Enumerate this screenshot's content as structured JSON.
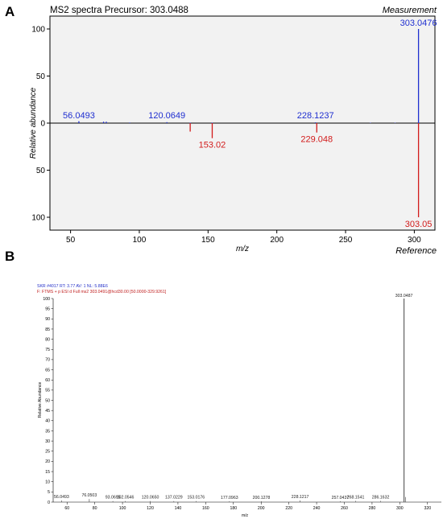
{
  "panel_a": {
    "letter": "A",
    "title": "MS2 spectra Precursor: 303.0488",
    "top_label": "Measurement",
    "bottom_label": "Reference",
    "colors": {
      "measurement": "#1f2fd0",
      "reference": "#d21b1b",
      "plot_bg": "#f2f2f2"
    }
  },
  "panel_b": {
    "letter": "B",
    "header_line1": "SKR #4017  RT: 3.77   AV: 1   NL: 5.88E6",
    "header_line2": "F:  FTMS + p ESI d Full ms2 303.0491@hcd30.00 [50.0000-329.9261]",
    "colors": {
      "header1": "#2430c8",
      "header2": "#c02020",
      "peaks": "#555555"
    }
  },
  "chart_data": [
    {
      "type": "bar",
      "title": "MS2 spectra Precursor: 303.0488",
      "xlabel": "m/z",
      "ylabel": "Relative abundance",
      "xlim": [
        35,
        315
      ],
      "ylim": [
        -110,
        110
      ],
      "x_ticks": [
        50,
        100,
        150,
        200,
        250,
        300
      ],
      "y_ticks": [
        100,
        50,
        0,
        -50,
        -100
      ],
      "y_tick_labels": [
        "100",
        "50",
        "0",
        "50",
        "100"
      ],
      "grid": false,
      "series": [
        {
          "name": "Measurement",
          "color": "#1f2fd0",
          "peaks": [
            {
              "mz": 56.0493,
              "intensity": 2,
              "label": "56.0493"
            },
            {
              "mz": 74.0,
              "intensity": 1.5
            },
            {
              "mz": 76.0,
              "intensity": 1.5
            },
            {
              "mz": 93.0,
              "intensity": 0.6
            },
            {
              "mz": 120.0649,
              "intensity": 1,
              "label": "120.0649"
            },
            {
              "mz": 137.0,
              "intensity": 0.5
            },
            {
              "mz": 153.0,
              "intensity": 0.5
            },
            {
              "mz": 228.1237,
              "intensity": 0.8,
              "label": "228.1237"
            },
            {
              "mz": 268.0,
              "intensity": 0.4
            },
            {
              "mz": 286.0,
              "intensity": 0.4
            },
            {
              "mz": 303.0476,
              "intensity": 100,
              "label": "303.0476"
            }
          ]
        },
        {
          "name": "Reference",
          "color": "#d21b1b",
          "peaks": [
            {
              "mz": 137.0,
              "intensity": 9
            },
            {
              "mz": 153.02,
              "intensity": 16,
              "label": "153.02"
            },
            {
              "mz": 229.048,
              "intensity": 10,
              "label": "229.048"
            },
            {
              "mz": 303.05,
              "intensity": 100,
              "label": "303.05"
            }
          ]
        }
      ]
    },
    {
      "type": "bar",
      "xlabel": "m/z",
      "ylabel": "Relative Abundance",
      "xlim": [
        50,
        330
      ],
      "ylim": [
        0,
        100
      ],
      "x_ticks": [
        60,
        80,
        100,
        120,
        140,
        160,
        180,
        200,
        220,
        240,
        260,
        280,
        300,
        320
      ],
      "y_ticks": [
        0,
        5,
        10,
        15,
        20,
        25,
        30,
        35,
        40,
        45,
        50,
        55,
        60,
        65,
        70,
        75,
        80,
        85,
        90,
        95,
        100
      ],
      "grid": false,
      "series": [
        {
          "peaks": [
            {
              "mz": 56.0493,
              "intensity": 0.8,
              "label": "56.0493"
            },
            {
              "mz": 76.0503,
              "intensity": 1.5,
              "label": "76.0503"
            },
            {
              "mz": 93.0695,
              "intensity": 0.5,
              "label": "93.0695"
            },
            {
              "mz": 102.0546,
              "intensity": 0.5,
              "label": "102.0546"
            },
            {
              "mz": 120.065,
              "intensity": 0.5,
              "label": "120.0650"
            },
            {
              "mz": 137.0229,
              "intensity": 0.5,
              "label": "137.0229"
            },
            {
              "mz": 153.0176,
              "intensity": 0.5,
              "label": "153.0176"
            },
            {
              "mz": 177.0963,
              "intensity": 0.4,
              "label": "177.0963"
            },
            {
              "mz": 200.1278,
              "intensity": 0.4,
              "label": "200.1278"
            },
            {
              "mz": 228.1217,
              "intensity": 0.8,
              "label": "228.1217"
            },
            {
              "mz": 257.0437,
              "intensity": 0.4,
              "label": "257.0437"
            },
            {
              "mz": 268.1541,
              "intensity": 0.6,
              "label": "268.1541"
            },
            {
              "mz": 286.1632,
              "intensity": 0.6,
              "label": "286.1632"
            },
            {
              "mz": 303.0487,
              "intensity": 100,
              "label": "303.0487"
            },
            {
              "mz": 304.05,
              "intensity": 2.5
            }
          ]
        }
      ]
    }
  ]
}
